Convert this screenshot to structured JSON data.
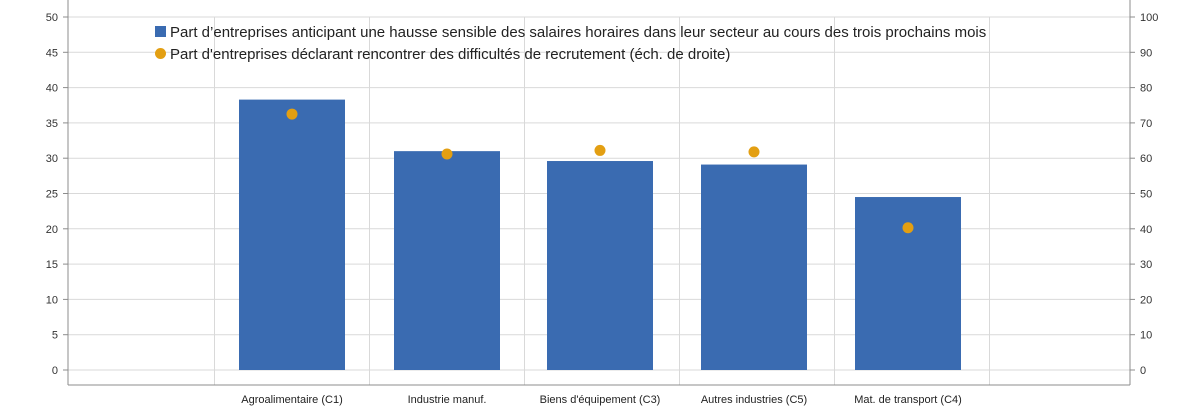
{
  "chart_data": {
    "type": "bar",
    "categories": [
      "Agroalimentaire (C1)",
      "Industrie manuf.",
      "Biens d'équipement (C3)",
      "Autres industries (C5)",
      "Mat. de transport (C4)"
    ],
    "series": [
      {
        "name": "Part d’entreprises anticipant une hausse sensible des salaires horaires dans leur secteur au cours des trois prochains mois",
        "type": "bar",
        "axis": "left",
        "values": [
          38.3,
          31.0,
          29.6,
          29.1,
          24.5
        ]
      },
      {
        "name": "Part d'entreprises déclarant rencontrer des difficultés de recrutement (éch. de droite)",
        "type": "scatter",
        "axis": "right",
        "values": [
          72.5,
          61.2,
          62.2,
          61.8,
          40.3
        ]
      }
    ],
    "y_left": {
      "min": 0,
      "max": 50,
      "ticks": [
        0,
        5,
        10,
        15,
        20,
        25,
        30,
        35,
        40,
        45,
        50
      ]
    },
    "y_right": {
      "min": 0,
      "max": 100,
      "ticks": [
        0,
        10,
        20,
        30,
        40,
        50,
        60,
        70,
        80,
        90,
        100
      ]
    },
    "grid": true,
    "legend_position": "top",
    "colors": {
      "bar": "#3a6bb1",
      "dot": "#e39f12",
      "grid": "#d9d9d9",
      "axis": "#8c8c8c"
    }
  }
}
